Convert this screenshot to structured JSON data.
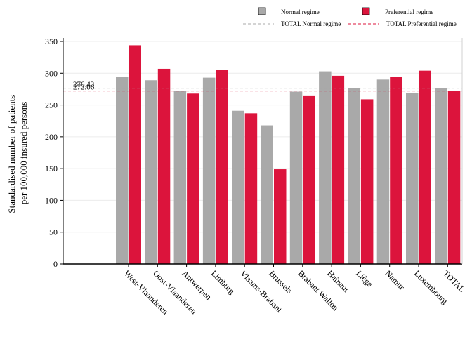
{
  "chart_data": {
    "type": "bar",
    "categories": [
      "West-Vlaanderen",
      "Oost-Vlaanderen",
      "Antwerpen",
      "Limburg",
      "Vlaams-Brabant",
      "Brussels",
      "Brabant Wallon",
      "Hainaut",
      "Liège",
      "Namur",
      "Luxembourg",
      "TOTAL"
    ],
    "series": [
      {
        "name": "Normal regime",
        "color": "#a9a9a9",
        "values": [
          294,
          289,
          272,
          293,
          241,
          218,
          271,
          303,
          277,
          290,
          269,
          276
        ]
      },
      {
        "name": "Preferential regime",
        "color": "#dc143c",
        "values": [
          344,
          307,
          268,
          305,
          237,
          149,
          264,
          296,
          259,
          294,
          304,
          272
        ]
      }
    ],
    "reference_lines": [
      {
        "name": "TOTAL Normal regime",
        "value": 276.43,
        "label": "276.43",
        "color": "#a9a9a9",
        "style": "dashed"
      },
      {
        "name": "TOTAL Preferential regime",
        "value": 272.06,
        "label": "272.06",
        "color": "#dc143c",
        "style": "dashed"
      }
    ],
    "ylabel_lines": [
      "Standardised number of patients",
      "per 100,000 insured persons"
    ],
    "xlabel": "",
    "ylim": [
      0,
      350
    ],
    "yticks": [
      0,
      50,
      100,
      150,
      200,
      250,
      300,
      350
    ],
    "grid": true,
    "legend_position": "top"
  }
}
